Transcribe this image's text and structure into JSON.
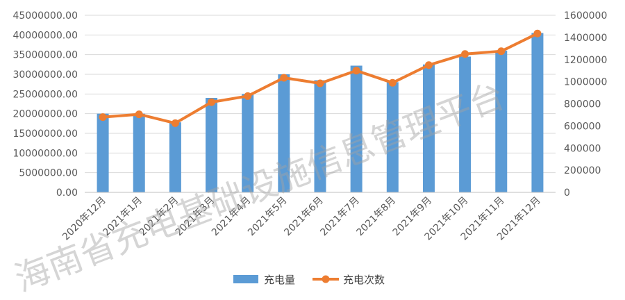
{
  "chart_data": {
    "type": "bar+line",
    "categories": [
      "2020年12月",
      "2021年1月",
      "2021年2月",
      "2021年3月",
      "2021年4月",
      "2021年5月",
      "2021年6月",
      "2021年7月",
      "2021年8月",
      "2021年9月",
      "2021年10月",
      "2021年11月",
      "2021年12月"
    ],
    "series": [
      {
        "name": "充电量",
        "kind": "bar",
        "axis": "left",
        "color": "#5b9bd5",
        "values": [
          20000000,
          20000000,
          17800000,
          24000000,
          25000000,
          30000000,
          28500000,
          32200000,
          28000000,
          32500000,
          34500000,
          36000000,
          40500000
        ]
      },
      {
        "name": "充电次数",
        "kind": "line",
        "axis": "right",
        "color": "#ed7d31",
        "values": [
          680000,
          705000,
          625000,
          815000,
          870000,
          1035000,
          985000,
          1100000,
          990000,
          1150000,
          1250000,
          1275000,
          1435000
        ]
      }
    ],
    "y_left": {
      "lim": [
        0,
        45000000
      ],
      "ticks": [
        "0.00",
        "5000000.00",
        "10000000.00",
        "15000000.00",
        "20000000.00",
        "25000000.00",
        "30000000.00",
        "35000000.00",
        "40000000.00",
        "45000000.00"
      ]
    },
    "y_right": {
      "lim": [
        0,
        1600000
      ],
      "ticks": [
        "0",
        "200000",
        "400000",
        "600000",
        "800000",
        "1000000",
        "1200000",
        "1400000",
        "1600000"
      ]
    },
    "grid": true,
    "legend_position": "bottom"
  },
  "watermark": "海南省充电基础设施信息管理平台"
}
